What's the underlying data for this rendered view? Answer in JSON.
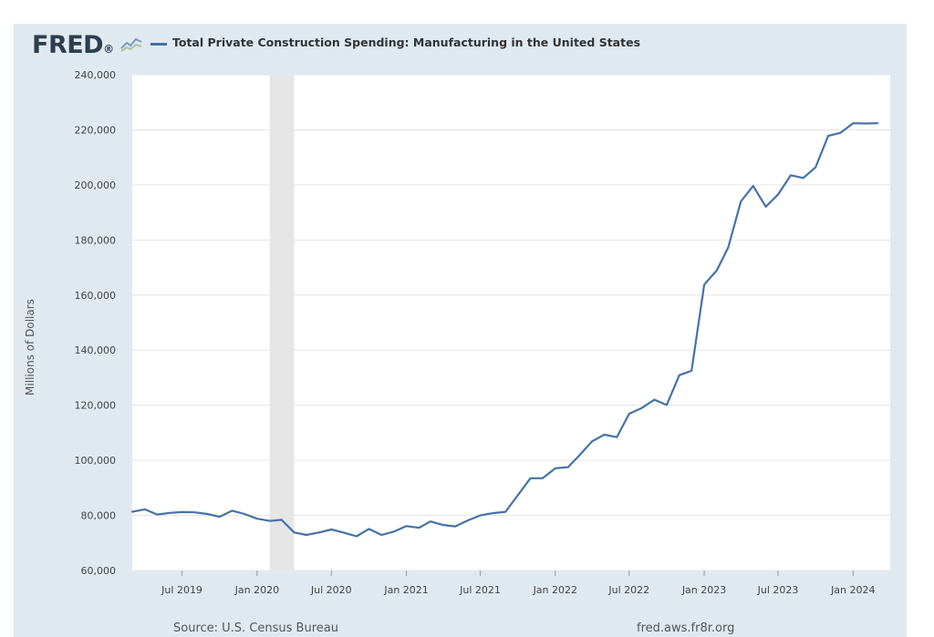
{
  "header": {
    "logo_text": "FRED",
    "logo_mark": "®",
    "logo_icon": "chart-line-icon"
  },
  "chart_data": {
    "type": "line",
    "title": "Total Private Construction Spending: Manufacturing in the United States",
    "xlabel": "",
    "ylabel": "Millions of Dollars",
    "ylim": [
      60000,
      240000
    ],
    "yticks": [
      60000,
      80000,
      100000,
      120000,
      140000,
      160000,
      180000,
      200000,
      220000,
      240000
    ],
    "ytick_labels": [
      "60,000",
      "80,000",
      "100,000",
      "120,000",
      "140,000",
      "160,000",
      "180,000",
      "200,000",
      "220,000",
      "240,000"
    ],
    "xlim": [
      "2019-03-01",
      "2024-04-01"
    ],
    "xticks": [
      "2019-07-01",
      "2020-01-01",
      "2020-07-01",
      "2021-01-01",
      "2021-07-01",
      "2022-01-01",
      "2022-07-01",
      "2023-01-01",
      "2023-07-01",
      "2024-01-01"
    ],
    "xtick_labels": [
      "Jul 2019",
      "Jan 2020",
      "Jul 2020",
      "Jan 2021",
      "Jul 2021",
      "Jan 2022",
      "Jul 2022",
      "Jan 2023",
      "Jul 2023",
      "Jan 2024"
    ],
    "recession": {
      "start": "2020-02-01",
      "end": "2020-04-01"
    },
    "grid": true,
    "legend": "top-left",
    "series": [
      {
        "name": "Total Private Construction Spending: Manufacturing in the United States",
        "color": "#4572a7",
        "x": [
          "2019-03-01",
          "2019-04-01",
          "2019-05-01",
          "2019-06-01",
          "2019-07-01",
          "2019-08-01",
          "2019-09-01",
          "2019-10-01",
          "2019-11-01",
          "2019-12-01",
          "2020-01-01",
          "2020-02-01",
          "2020-03-01",
          "2020-04-01",
          "2020-05-01",
          "2020-06-01",
          "2020-07-01",
          "2020-08-01",
          "2020-09-01",
          "2020-10-01",
          "2020-11-01",
          "2020-12-01",
          "2021-01-01",
          "2021-02-01",
          "2021-03-01",
          "2021-04-01",
          "2021-05-01",
          "2021-06-01",
          "2021-07-01",
          "2021-08-01",
          "2021-09-01",
          "2021-10-01",
          "2021-11-01",
          "2021-12-01",
          "2022-01-01",
          "2022-02-01",
          "2022-03-01",
          "2022-04-01",
          "2022-05-01",
          "2022-06-01",
          "2022-07-01",
          "2022-08-01",
          "2022-09-01",
          "2022-10-01",
          "2022-11-01",
          "2022-12-01",
          "2023-01-01",
          "2023-02-01",
          "2023-03-01",
          "2023-04-01",
          "2023-05-01",
          "2023-06-01",
          "2023-07-01",
          "2023-08-01",
          "2023-09-01",
          "2023-10-01",
          "2023-11-01",
          "2023-12-01",
          "2024-01-01",
          "2024-02-01",
          "2024-03-01"
        ],
        "values": [
          81300,
          82200,
          80300,
          80900,
          81200,
          81100,
          80500,
          79500,
          81700,
          80500,
          78800,
          78000,
          78400,
          73800,
          72900,
          73800,
          74900,
          73700,
          72400,
          75100,
          72900,
          74100,
          76100,
          75500,
          77800,
          76500,
          76000,
          78200,
          80000,
          80800,
          81300,
          87300,
          93500,
          93500,
          97100,
          97500,
          101800,
          106900,
          109300,
          108400,
          116900,
          119000,
          122000,
          120100,
          130900,
          132500,
          163800,
          169000,
          177300,
          194000,
          199600,
          192100,
          196500,
          203500,
          202500,
          206400,
          217800,
          218900,
          222400,
          222300,
          222400
        ]
      }
    ]
  },
  "footer": {
    "source": "Source: U.S. Census Bureau",
    "site": "fred.aws.fr8r.org"
  }
}
